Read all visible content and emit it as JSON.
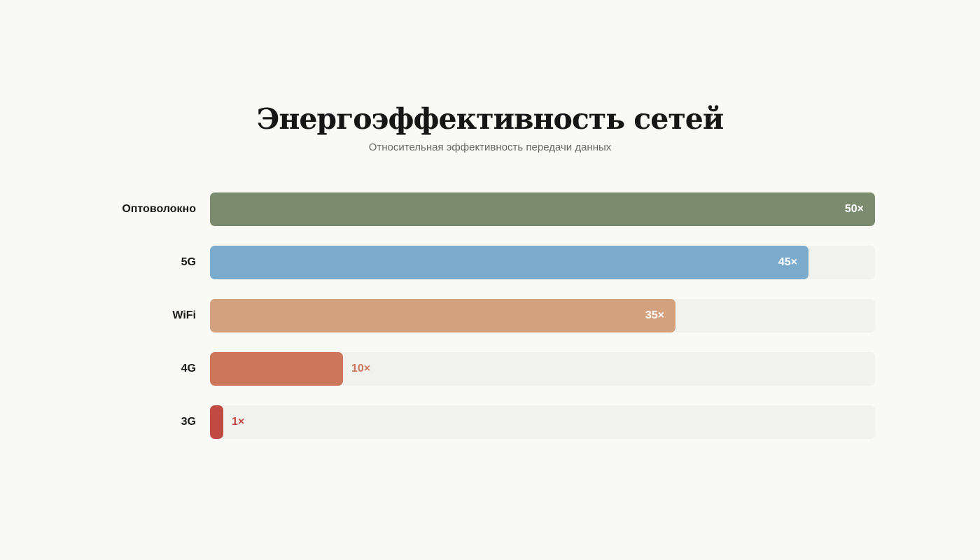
{
  "header": {
    "title": "Энергоэффективность сетей",
    "subtitle": "Относительная эффективность передачи данных"
  },
  "chart_data": {
    "type": "bar",
    "orientation": "horizontal",
    "title": "Энергоэффективность сетей",
    "subtitle": "Относительная эффективность передачи данных",
    "xlabel": "",
    "ylabel": "",
    "xlim": [
      0,
      50
    ],
    "grid": false,
    "legend": null,
    "categories": [
      "Оптоволокно",
      "5G",
      "WiFi",
      "4G",
      "3G"
    ],
    "values": [
      50,
      45,
      35,
      10,
      1
    ],
    "value_labels": [
      "50×",
      "45×",
      "35×",
      "10×",
      "1×"
    ],
    "colors": [
      "#7a8b6e",
      "#7aabcc",
      "#d4a17f",
      "#cc775c",
      "#c14b42"
    ],
    "track_color": "#f1f1ed"
  },
  "rows": [
    {
      "label": "Оптоволокно",
      "value": 50,
      "value_label": "50×",
      "color": "#7a8b6e"
    },
    {
      "label": "5G",
      "value": 45,
      "value_label": "45×",
      "color": "#7aabcc"
    },
    {
      "label": "WiFi",
      "value": 35,
      "value_label": "35×",
      "color": "#d4a17f"
    },
    {
      "label": "4G",
      "value": 10,
      "value_label": "10×",
      "color": "#cc775c"
    },
    {
      "label": "3G",
      "value": 1,
      "value_label": "1×",
      "color": "#c14b42"
    }
  ]
}
